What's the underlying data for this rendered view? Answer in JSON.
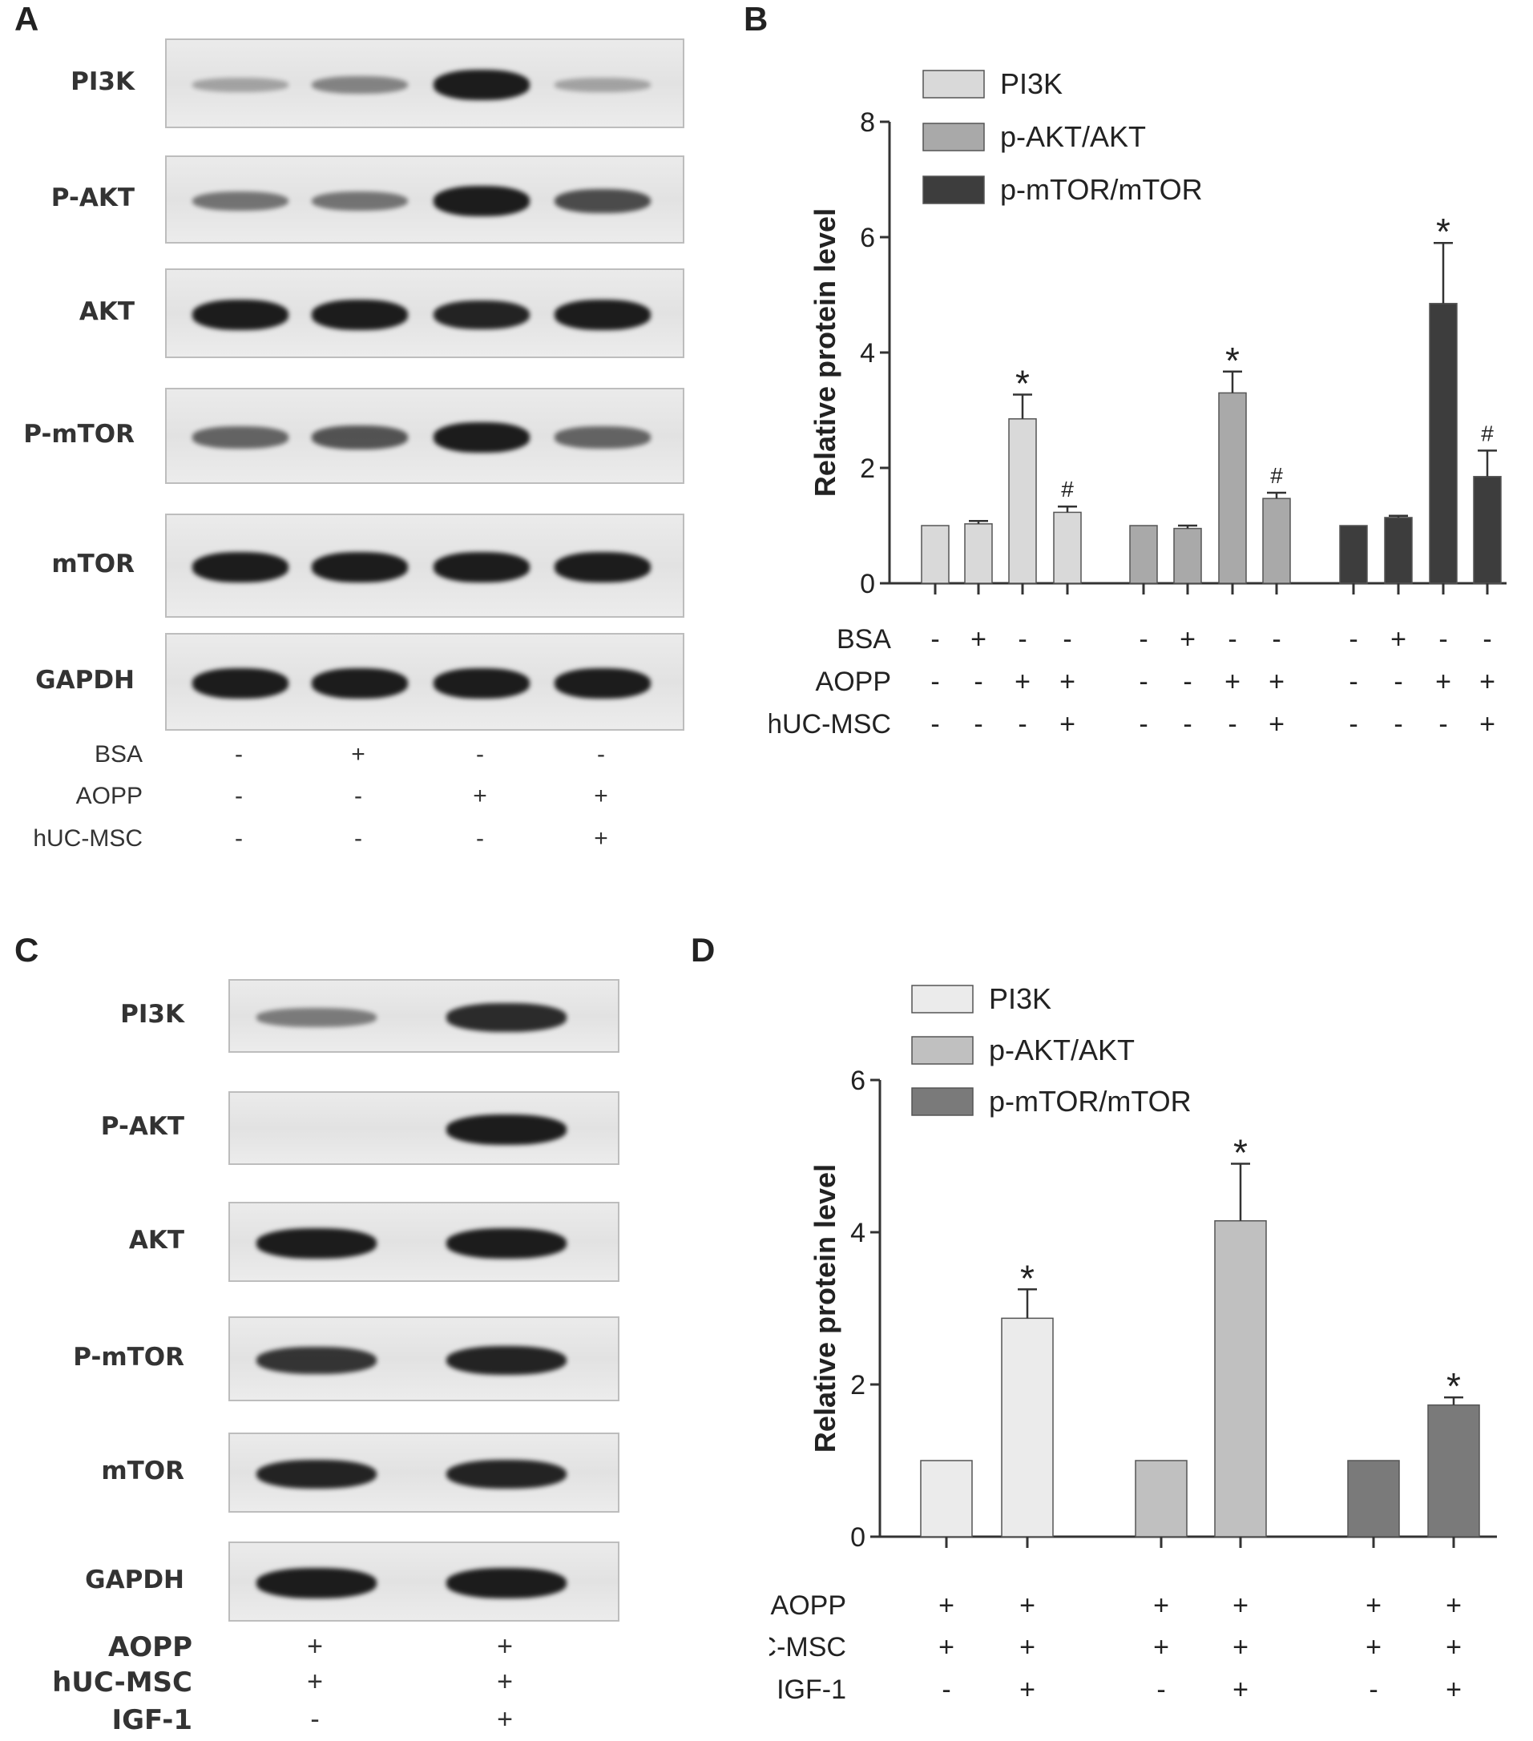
{
  "panels": {
    "A": {
      "letter": "A",
      "blots": [
        {
          "label": "PI3K",
          "intensity": [
            0.15,
            0.35,
            1.0,
            0.15
          ]
        },
        {
          "label": "P-AKT",
          "intensity": [
            0.45,
            0.45,
            1.0,
            0.7
          ]
        },
        {
          "label": "AKT",
          "intensity": [
            1.0,
            1.0,
            0.95,
            1.0
          ]
        },
        {
          "label": "P-mTOR",
          "intensity": [
            0.55,
            0.65,
            1.0,
            0.55
          ]
        },
        {
          "label": "mTOR",
          "intensity": [
            1.0,
            1.0,
            1.0,
            1.0
          ]
        },
        {
          "label": "GAPDH",
          "intensity": [
            1.0,
            1.0,
            1.0,
            1.0
          ]
        }
      ],
      "conditions": [
        {
          "label": "BSA",
          "signs": [
            "-",
            "+",
            "-",
            "-"
          ]
        },
        {
          "label": "AOPP",
          "signs": [
            "-",
            "-",
            "+",
            "+"
          ]
        },
        {
          "label": "hUC-MSC",
          "signs": [
            "-",
            "-",
            "-",
            "+"
          ]
        }
      ]
    },
    "B": {
      "letter": "B",
      "conditions": [
        {
          "label": "BSA",
          "signs": [
            "-",
            "+",
            "-",
            "-",
            "-",
            "+",
            "-",
            "-",
            "-",
            "+",
            "-",
            "-"
          ]
        },
        {
          "label": "AOPP",
          "signs": [
            "-",
            "-",
            "+",
            "+",
            "-",
            "-",
            "+",
            "+",
            "-",
            "-",
            "+",
            "+"
          ]
        },
        {
          "label": "hUC-MSC",
          "signs": [
            "-",
            "-",
            "-",
            "+",
            "-",
            "-",
            "-",
            "+",
            "-",
            "-",
            "-",
            "+"
          ]
        }
      ]
    },
    "C": {
      "letter": "C",
      "blots": [
        {
          "label": "PI3K",
          "intensity": [
            0.4,
            0.9
          ]
        },
        {
          "label": "P-AKT",
          "intensity": [
            0.0,
            1.0
          ]
        },
        {
          "label": "AKT",
          "intensity": [
            1.0,
            1.0
          ]
        },
        {
          "label": "P-mTOR",
          "intensity": [
            0.85,
            0.95
          ]
        },
        {
          "label": "mTOR",
          "intensity": [
            0.95,
            0.95
          ]
        },
        {
          "label": "GAPDH",
          "intensity": [
            1.0,
            1.0
          ]
        }
      ],
      "conditions": [
        {
          "label": "AOPP",
          "signs": [
            "+",
            "+"
          ]
        },
        {
          "label": "hUC-MSC",
          "signs": [
            "+",
            "+"
          ]
        },
        {
          "label": "IGF-1",
          "signs": [
            "-",
            "+"
          ]
        }
      ]
    },
    "D": {
      "letter": "D",
      "conditions": [
        {
          "label": "AOPP",
          "signs": [
            "+",
            "+",
            "+",
            "+",
            "+",
            "+"
          ]
        },
        {
          "label": "hUC-MSC",
          "signs": [
            "+",
            "+",
            "+",
            "+",
            "+",
            "+"
          ]
        },
        {
          "label": "IGF-1",
          "signs": [
            "-",
            "+",
            "-",
            "+",
            "-",
            "+"
          ]
        }
      ]
    }
  },
  "chart_data": [
    {
      "panel": "B",
      "type": "bar",
      "ylabel": "Relative protein level",
      "ylim": [
        0,
        8
      ],
      "yticks": [
        "0",
        "2",
        "4",
        "6",
        "8"
      ],
      "legend_position": "top",
      "series": [
        {
          "name": "PI3K",
          "color": "#d9d9d9",
          "values": [
            1.0,
            1.03,
            2.85,
            1.23
          ],
          "errors": [
            0,
            0.05,
            0.42,
            0.1
          ],
          "marks": [
            "",
            "",
            "*",
            "#"
          ]
        },
        {
          "name": "p-AKT/AKT",
          "color": "#a9a9a9",
          "values": [
            1.0,
            0.95,
            3.3,
            1.47
          ],
          "errors": [
            0,
            0.05,
            0.37,
            0.1
          ],
          "marks": [
            "",
            "",
            "*",
            "#"
          ]
        },
        {
          "name": "p-mTOR/mTOR",
          "color": "#3d3d3d",
          "values": [
            1.0,
            1.14,
            4.85,
            1.85
          ],
          "errors": [
            0,
            0.03,
            1.05,
            0.45
          ],
          "marks": [
            "",
            "",
            "*",
            "#"
          ]
        }
      ]
    },
    {
      "panel": "D",
      "type": "bar",
      "ylabel": "Relative protein level",
      "ylim": [
        0,
        6
      ],
      "yticks": [
        "0",
        "2",
        "4",
        "6"
      ],
      "legend_position": "top",
      "series": [
        {
          "name": "PI3K",
          "color": "#ebebeb",
          "values": [
            1.0,
            2.87
          ],
          "errors": [
            0,
            0.38
          ],
          "marks": [
            "",
            "*"
          ]
        },
        {
          "name": "p-AKT/AKT",
          "color": "#c0c0c0",
          "values": [
            1.0,
            4.15
          ],
          "errors": [
            0,
            0.75
          ],
          "marks": [
            "",
            "*"
          ]
        },
        {
          "name": "p-mTOR/mTOR",
          "color": "#7a7a7a",
          "values": [
            1.0,
            1.73
          ],
          "errors": [
            0,
            0.1
          ],
          "marks": [
            "",
            "*"
          ]
        }
      ]
    }
  ]
}
